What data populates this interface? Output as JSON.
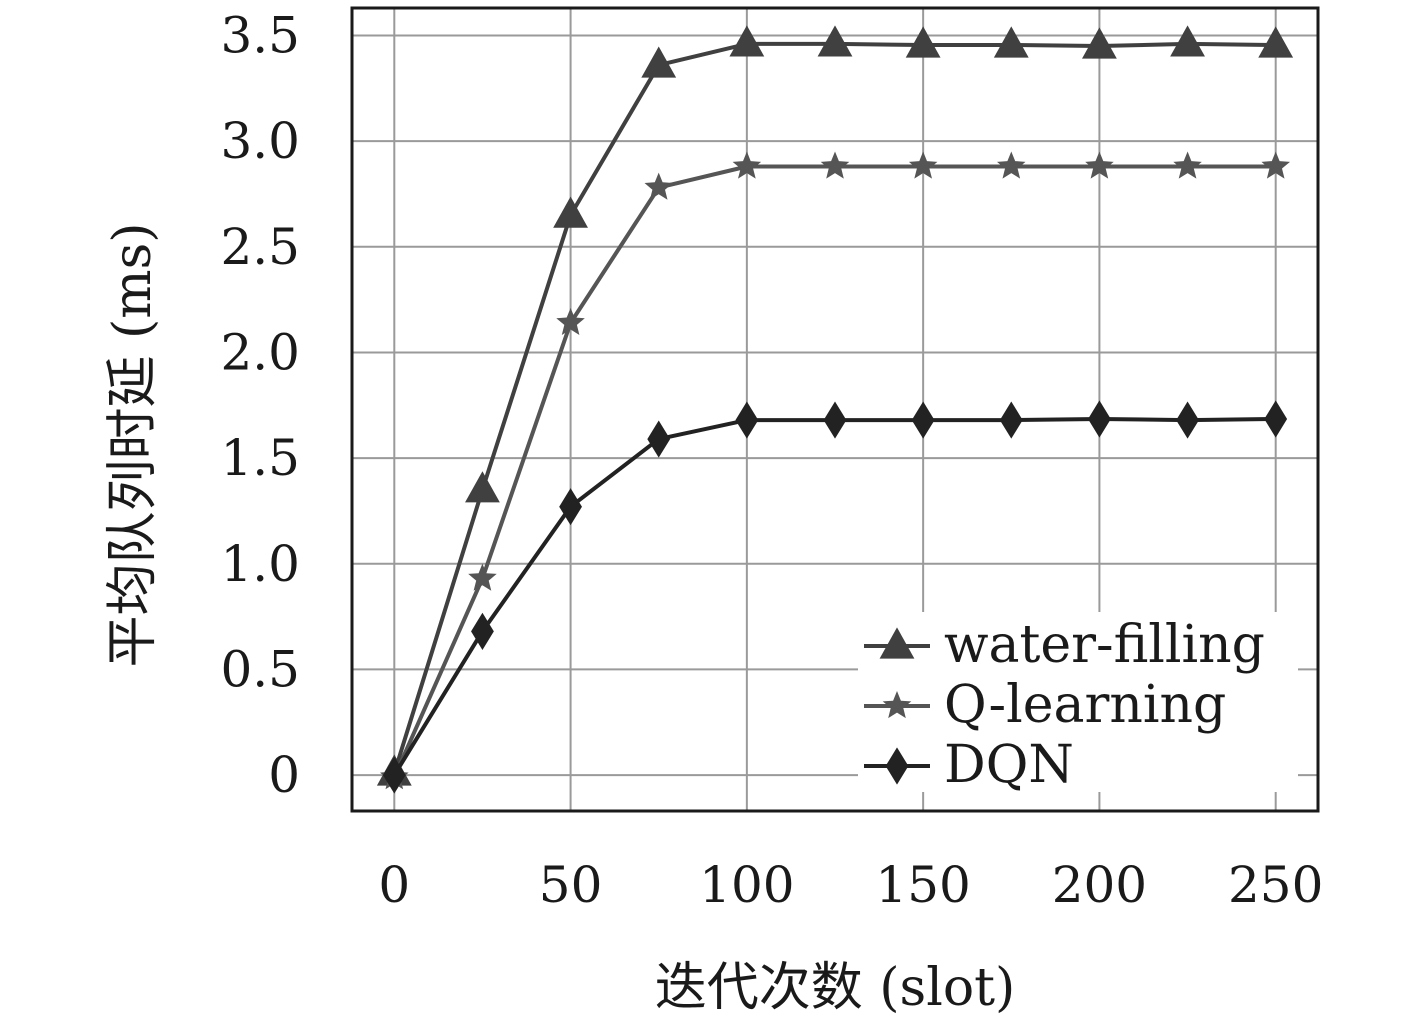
{
  "chart_data": {
    "type": "line",
    "xlabel": "迭代次数 (slot)",
    "ylabel": "平均队列时延 (ms)",
    "x": [
      0,
      25,
      50,
      75,
      100,
      125,
      150,
      175,
      200,
      225,
      250
    ],
    "xlim": [
      -12,
      262
    ],
    "ylim": [
      -0.17,
      3.63
    ],
    "xticks": [
      0,
      50,
      100,
      150,
      200,
      250
    ],
    "xtick_labels": [
      "0",
      "50",
      "100",
      "150",
      "200",
      "250"
    ],
    "yticks": [
      0,
      0.5,
      1.0,
      1.5,
      2.0,
      2.5,
      3.0,
      3.5
    ],
    "ytick_labels": [
      "0",
      "0.5",
      "1.0",
      "1.5",
      "2.0",
      "2.5",
      "3.0",
      "3.5"
    ],
    "grid": true,
    "legend_position": "bottom-right",
    "series": [
      {
        "name": "water-filling",
        "marker": "triangle",
        "color": "#404040",
        "values": [
          0.01,
          1.35,
          2.65,
          3.36,
          3.46,
          3.46,
          3.455,
          3.455,
          3.45,
          3.46,
          3.455
        ]
      },
      {
        "name": "Q-learning",
        "marker": "star",
        "color": "#555555",
        "values": [
          -0.01,
          0.93,
          2.14,
          2.78,
          2.88,
          2.88,
          2.88,
          2.88,
          2.88,
          2.88,
          2.88
        ]
      },
      {
        "name": "DQN",
        "marker": "diamond",
        "color": "#222222",
        "values": [
          0.0,
          0.68,
          1.27,
          1.59,
          1.68,
          1.68,
          1.68,
          1.68,
          1.685,
          1.68,
          1.685
        ]
      }
    ]
  }
}
